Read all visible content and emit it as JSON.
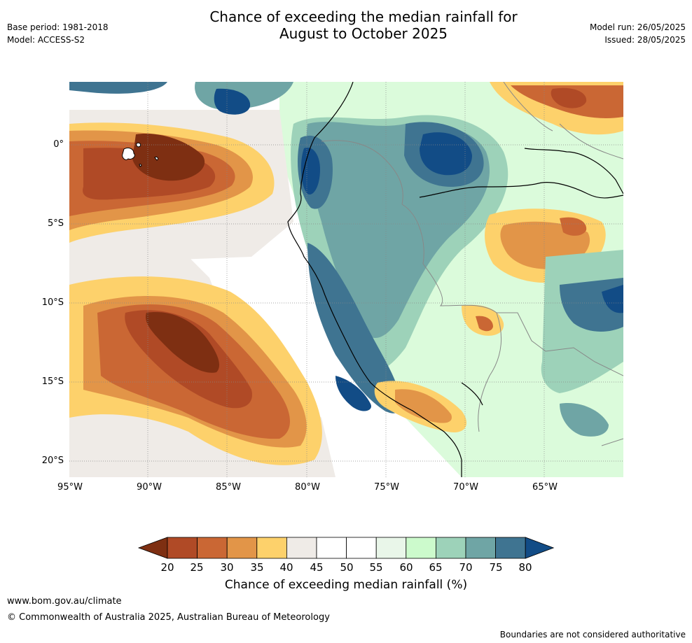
{
  "header": {
    "title_line1": "Chance of exceeding the median rainfall for",
    "title_line2": "August to October 2025",
    "base_period": "Base period: 1981-2018",
    "model": "Model: ACCESS-S2",
    "model_run": "Model run: 26/05/2025",
    "issued": "Issued: 28/05/2025"
  },
  "map": {
    "lat_labels": [
      "0°",
      "5°S",
      "10°S",
      "15°S",
      "20°S"
    ],
    "lon_labels": [
      "95°W",
      "90°W",
      "85°W",
      "80°W",
      "75°W",
      "70°W",
      "65°W"
    ]
  },
  "colorbar": {
    "ticks": [
      "20",
      "25",
      "30",
      "35",
      "40",
      "45",
      "50",
      "55",
      "60",
      "65",
      "70",
      "75",
      "80"
    ],
    "colors": [
      "#7e2f12",
      "#b04a26",
      "#ca6734",
      "#e29548",
      "#fdd16b",
      "#efebe7",
      "#ffffff",
      "#ffffff",
      "#e9f6e9",
      "#ccfacc",
      "#9dd2b9",
      "#6fa5a5",
      "#3f7491",
      "#124c86"
    ],
    "label": "Chance of exceeding median rainfall (%)"
  },
  "footer": {
    "url": "www.bom.gov.au/climate",
    "copyright": "© Commonwealth of Australia 2025, Australian Bureau of Meteorology",
    "disclaimer": "Boundaries are not considered authoritative"
  }
}
